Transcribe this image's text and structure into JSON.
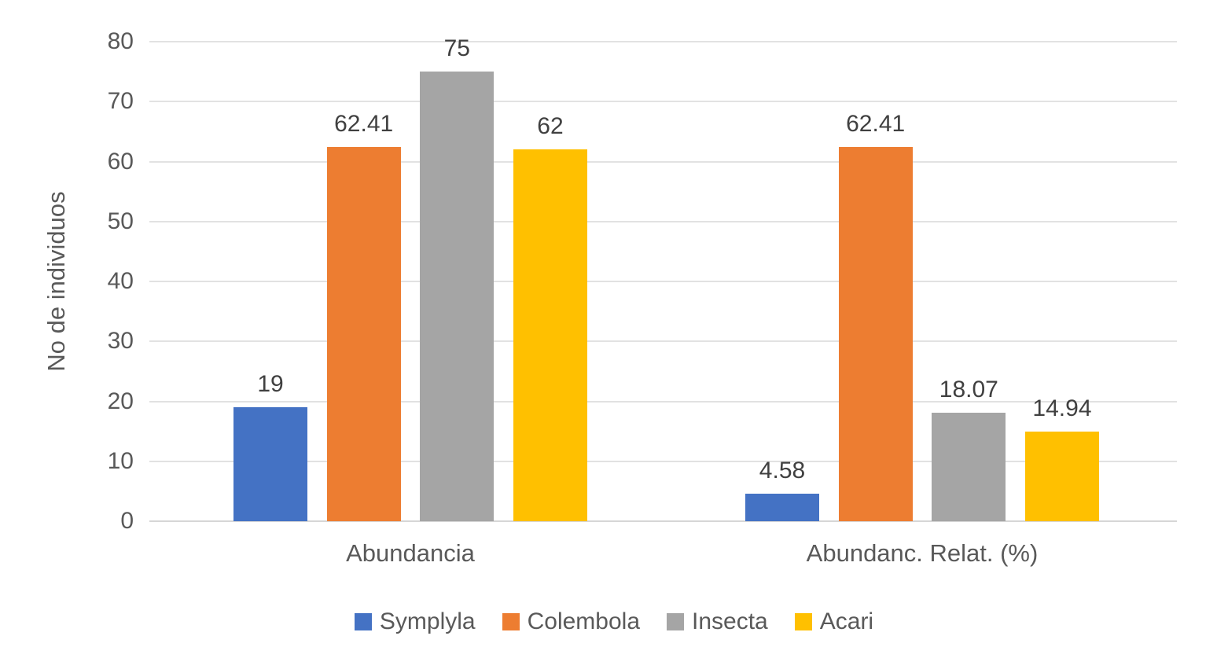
{
  "chart_data": {
    "type": "bar",
    "title": "",
    "xlabel": "",
    "ylabel": "No de individuos",
    "categories": [
      "Abundancia",
      "Abundanc. Relat. (%)"
    ],
    "series": [
      {
        "name": "Symplyla",
        "color": "#4472C4",
        "values": [
          19,
          4.58
        ],
        "labels": [
          "19",
          "4.58"
        ]
      },
      {
        "name": "Colembola",
        "color": "#ED7D31",
        "values": [
          62.41,
          62.41
        ],
        "labels": [
          "62.41",
          "62.41"
        ]
      },
      {
        "name": "Insecta",
        "color": "#A5A5A5",
        "values": [
          75,
          18.07
        ],
        "labels": [
          "75",
          "18.07"
        ]
      },
      {
        "name": "Acari",
        "color": "#FFC000",
        "values": [
          62,
          14.94
        ],
        "labels": [
          "62",
          "14.94"
        ]
      }
    ],
    "y_axis": {
      "min": 0,
      "max": 80,
      "step": 10,
      "ticks": [
        0,
        10,
        20,
        30,
        40,
        50,
        60,
        70,
        80
      ]
    },
    "grid": true,
    "legend_position": "bottom",
    "data_labels": "outside-end",
    "colors": {
      "gridline": "#E2E2E2",
      "axis_line": "#D6D6D6",
      "axis_text": "#595959",
      "data_label_text": "#404040",
      "background": "#FFFFFF"
    }
  }
}
